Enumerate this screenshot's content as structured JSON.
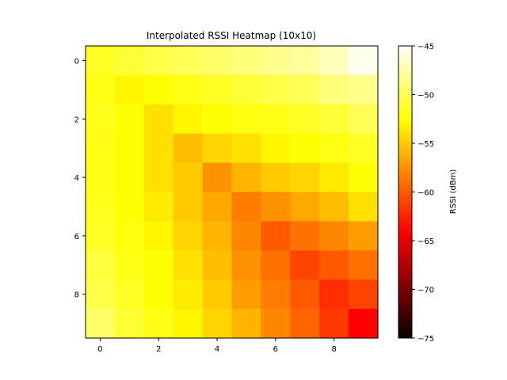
{
  "chart_data": {
    "type": "heatmap",
    "title": "Interpolated RSSI Heatmap (10x10)",
    "xlabel": "",
    "ylabel": "",
    "x_ticks": [
      0,
      2,
      4,
      6,
      8
    ],
    "y_ticks": [
      0,
      2,
      4,
      6,
      8
    ],
    "colorbar": {
      "label": "RSSI (dBm)",
      "range": [
        -75,
        -45
      ],
      "ticks": [
        -45,
        -50,
        -55,
        -60,
        -65,
        -70,
        -75
      ],
      "colormap": "hot"
    },
    "values": [
      [
        -51.5,
        -51.0,
        -50.5,
        -50.0,
        -49.5,
        -49.0,
        -48.5,
        -48.0,
        -47.0,
        -45.5
      ],
      [
        -52.0,
        -53.0,
        -52.5,
        -52.0,
        -51.5,
        -51.0,
        -50.5,
        -50.0,
        -49.0,
        -48.5
      ],
      [
        -51.8,
        -52.5,
        -54.0,
        -53.0,
        -52.5,
        -52.2,
        -52.0,
        -51.5,
        -51.0,
        -50.0
      ],
      [
        -52.0,
        -52.5,
        -54.0,
        -55.5,
        -54.5,
        -54.0,
        -53.0,
        -52.5,
        -52.0,
        -51.5
      ],
      [
        -52.0,
        -52.5,
        -54.0,
        -55.0,
        -57.5,
        -56.0,
        -55.0,
        -54.5,
        -53.5,
        -52.5
      ],
      [
        -51.8,
        -52.5,
        -53.5,
        -55.0,
        -56.5,
        -58.5,
        -57.5,
        -56.5,
        -55.5,
        -54.0
      ],
      [
        -51.5,
        -52.2,
        -53.0,
        -54.5,
        -56.0,
        -58.0,
        -60.0,
        -59.0,
        -58.0,
        -57.0
      ],
      [
        -50.8,
        -52.0,
        -52.5,
        -54.0,
        -55.5,
        -57.5,
        -59.0,
        -61.0,
        -60.0,
        -59.0
      ],
      [
        -50.5,
        -51.5,
        -52.5,
        -53.5,
        -55.0,
        -57.0,
        -58.5,
        -60.0,
        -62.0,
        -61.0
      ],
      [
        -49.5,
        -51.0,
        -52.0,
        -53.0,
        -54.5,
        -56.0,
        -58.0,
        -59.5,
        -61.5,
        -64.0
      ]
    ]
  }
}
